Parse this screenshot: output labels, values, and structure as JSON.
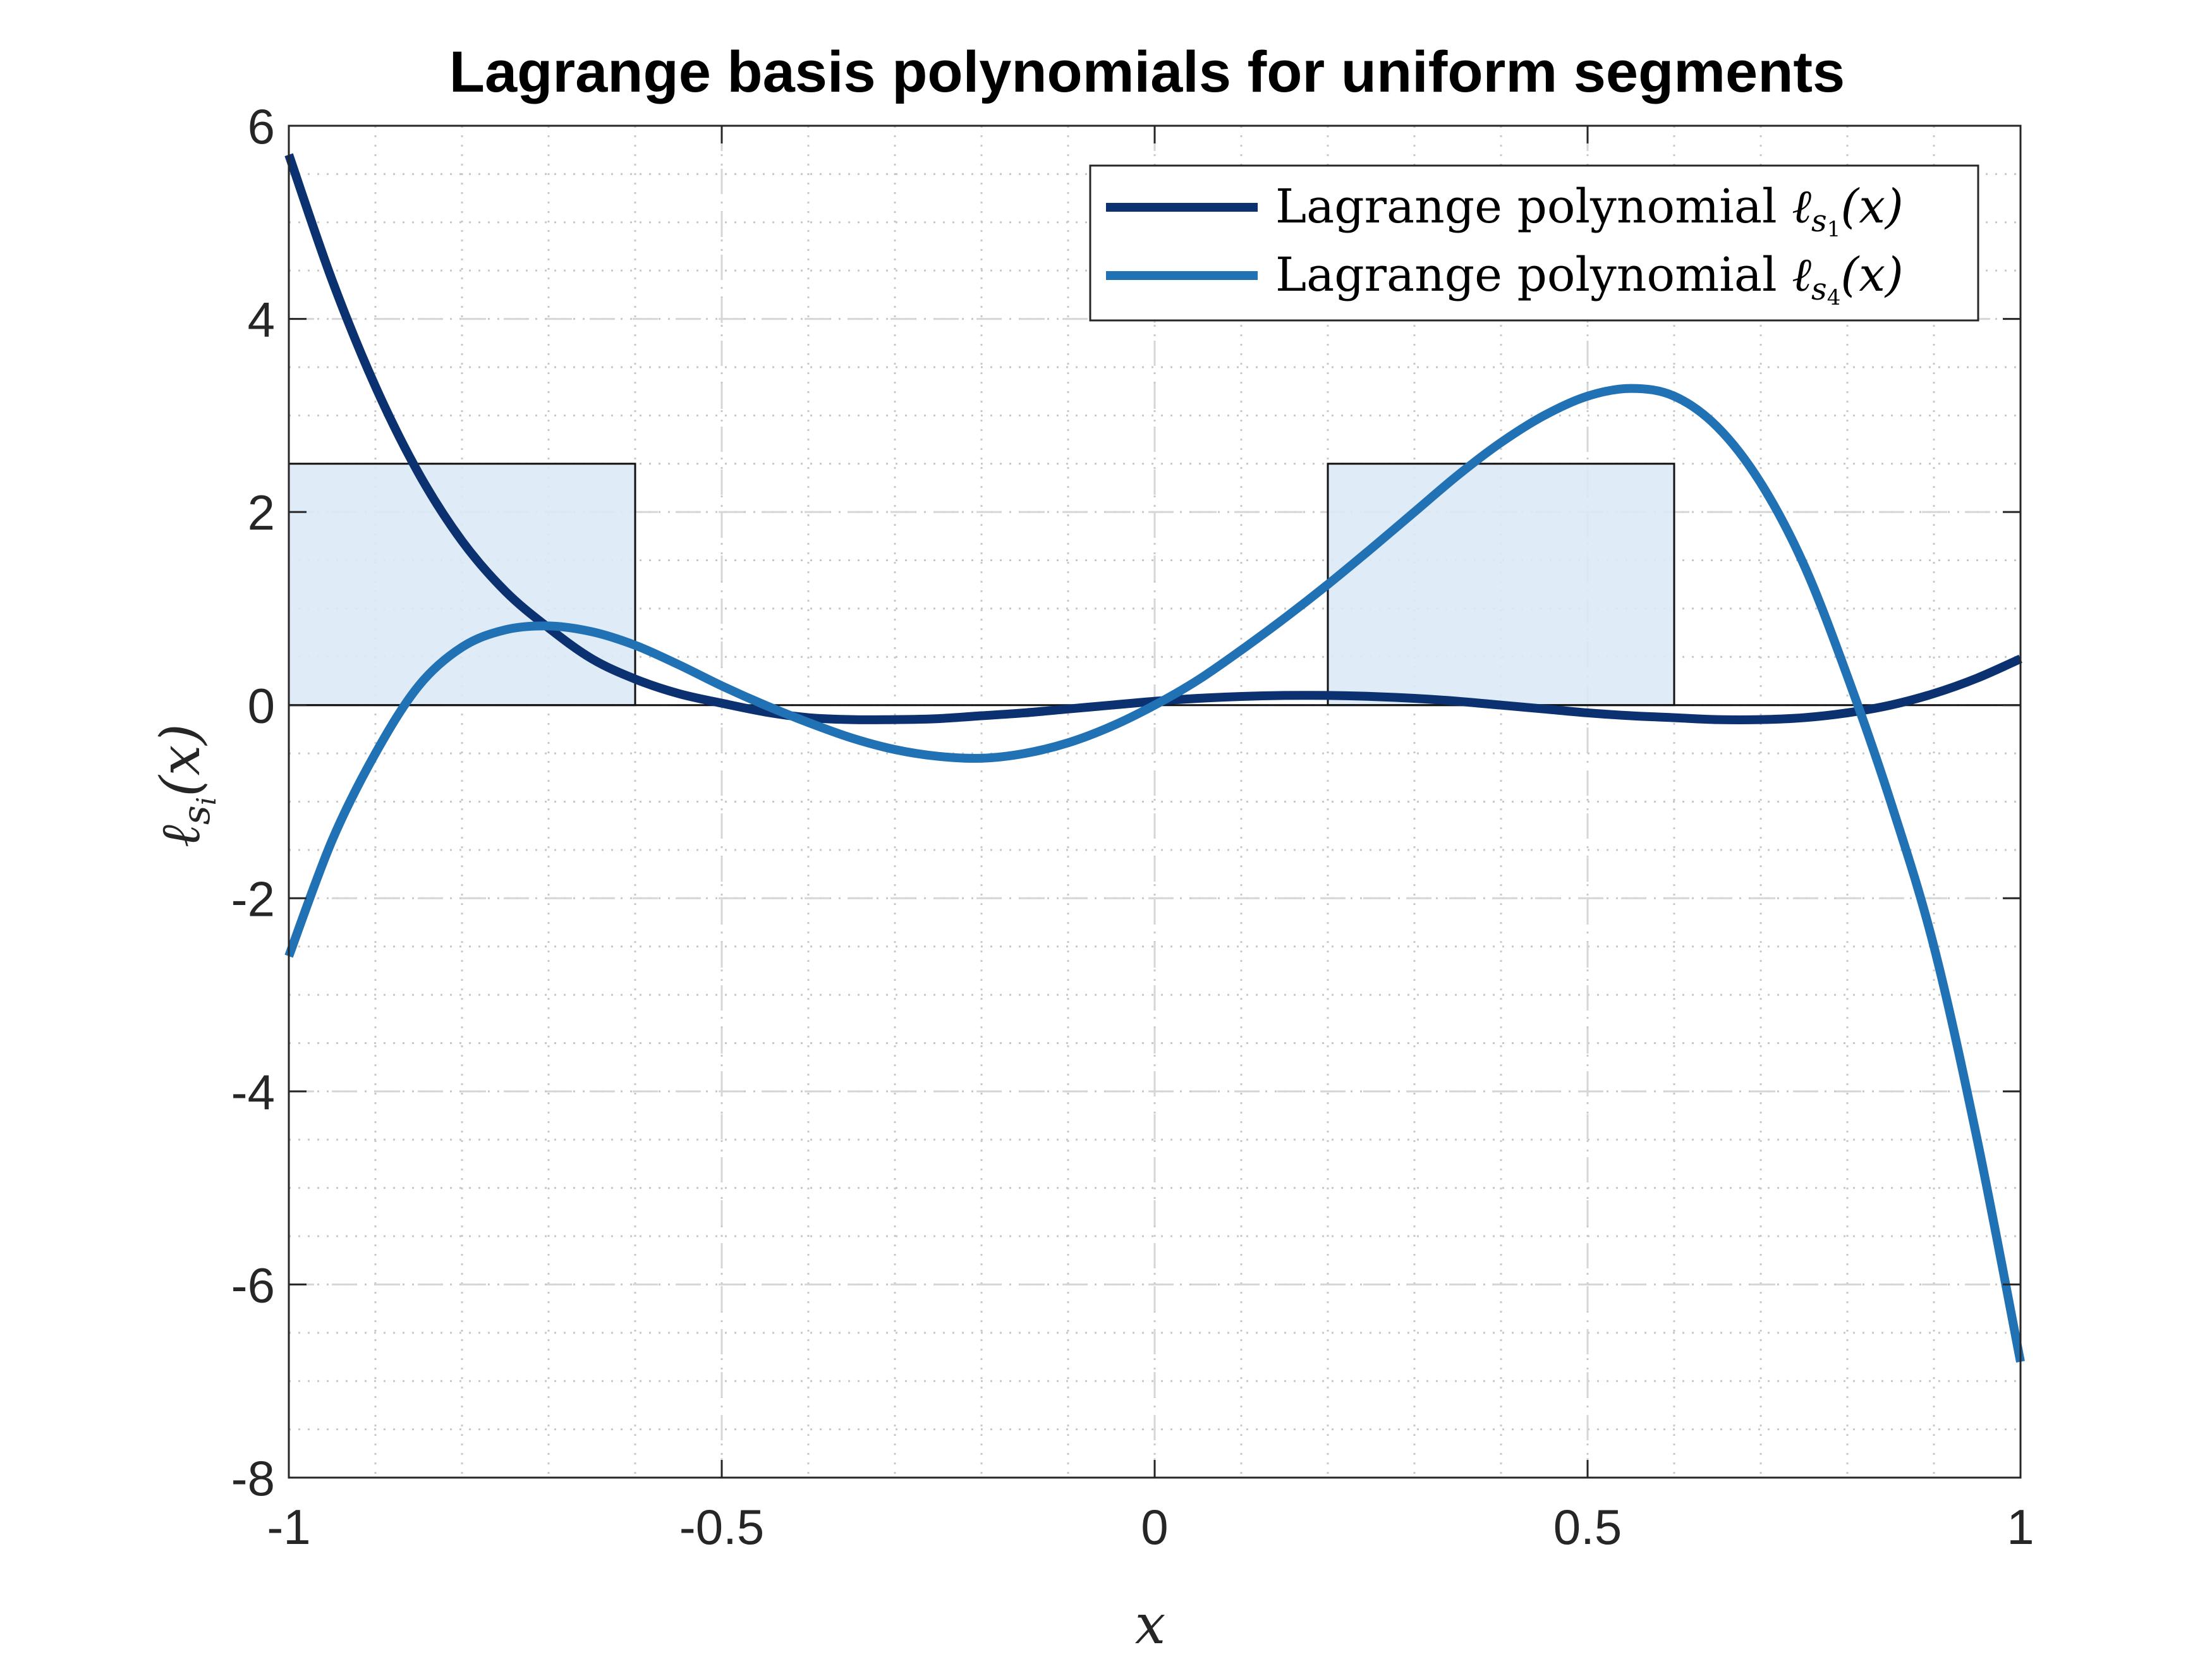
{
  "chart_data": {
    "type": "line",
    "title": "Lagrange basis polynomials for uniform segments",
    "xlabel": "x",
    "ylabel": "ℓ",
    "ylabel_sub": "s",
    "ylabel_subsub": "i",
    "ylabel_arg": "(x)",
    "xlim": [
      -1,
      1
    ],
    "ylim": [
      -8,
      6
    ],
    "xticks": [
      -1,
      -0.5,
      0,
      0.5,
      1
    ],
    "xtick_labels": [
      "-1",
      "-0.5",
      "0",
      "0.5",
      "1"
    ],
    "yticks": [
      -8,
      -6,
      -4,
      -2,
      0,
      2,
      4,
      6
    ],
    "ytick_labels": [
      "-8",
      "-6",
      "-4",
      "-2",
      "0",
      "2",
      "4",
      "6"
    ],
    "grid": true,
    "legend_position": "top-right",
    "segments": [
      {
        "x0": -1.0,
        "x1": -0.6,
        "y0": 0,
        "y1": 2.5
      },
      {
        "x0": 0.2,
        "x1": 0.6,
        "y0": 0,
        "y1": 2.5
      }
    ],
    "series": [
      {
        "legend_prefix": "Lagrange polynomial ",
        "legend_symbol": "ℓ",
        "legend_sub": "s",
        "legend_subsub": "1",
        "legend_arg": "(x)",
        "color": "#0b3171",
        "x": [
          -1.0,
          -0.95,
          -0.9,
          -0.85,
          -0.8,
          -0.75,
          -0.7,
          -0.65,
          -0.6,
          -0.55,
          -0.5,
          -0.45,
          -0.4,
          -0.35,
          -0.3,
          -0.25,
          -0.2,
          -0.15,
          -0.1,
          -0.05,
          0.0,
          0.05,
          0.1,
          0.15,
          0.2,
          0.25,
          0.3,
          0.35,
          0.4,
          0.45,
          0.5,
          0.55,
          0.6,
          0.65,
          0.7,
          0.75,
          0.8,
          0.85,
          0.9,
          0.95,
          1.0
        ],
        "y": [
          5.7,
          4.4,
          3.3,
          2.4,
          1.7,
          1.18,
          0.8,
          0.48,
          0.27,
          0.12,
          0.02,
          -0.07,
          -0.13,
          -0.15,
          -0.15,
          -0.14,
          -0.11,
          -0.08,
          -0.04,
          0.0,
          0.04,
          0.07,
          0.09,
          0.1,
          0.1,
          0.09,
          0.07,
          0.04,
          0.0,
          -0.04,
          -0.08,
          -0.11,
          -0.13,
          -0.15,
          -0.15,
          -0.13,
          -0.08,
          0.0,
          0.12,
          0.28,
          0.48
        ]
      },
      {
        "legend_prefix": "Lagrange polynomial ",
        "legend_symbol": "ℓ",
        "legend_sub": "s",
        "legend_subsub": "4",
        "legend_arg": "(x)",
        "color": "#2171b5",
        "x": [
          -1.0,
          -0.95,
          -0.9,
          -0.85,
          -0.8,
          -0.75,
          -0.7,
          -0.65,
          -0.6,
          -0.55,
          -0.5,
          -0.45,
          -0.4,
          -0.35,
          -0.3,
          -0.25,
          -0.2,
          -0.15,
          -0.1,
          -0.05,
          0.0,
          0.05,
          0.1,
          0.15,
          0.2,
          0.25,
          0.3,
          0.35,
          0.4,
          0.45,
          0.5,
          0.55,
          0.6,
          0.65,
          0.7,
          0.75,
          0.8,
          0.85,
          0.9,
          0.95,
          1.0
        ],
        "y": [
          -2.6,
          -1.4,
          -0.5,
          0.2,
          0.6,
          0.78,
          0.82,
          0.76,
          0.62,
          0.42,
          0.2,
          0.0,
          -0.18,
          -0.34,
          -0.46,
          -0.53,
          -0.55,
          -0.5,
          -0.39,
          -0.22,
          0.0,
          0.26,
          0.57,
          0.9,
          1.25,
          1.62,
          2.0,
          2.38,
          2.72,
          3.0,
          3.2,
          3.28,
          3.2,
          2.88,
          2.3,
          1.45,
          0.3,
          -1.0,
          -2.5,
          -4.5,
          -6.8
        ]
      }
    ]
  }
}
